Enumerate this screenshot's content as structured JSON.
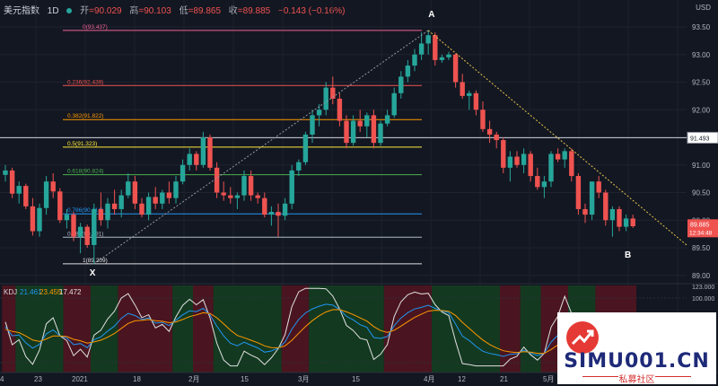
{
  "header": {
    "symbol": "美元指数",
    "interval": "1D",
    "open_label": "开",
    "open": "=90.029",
    "high_label": "高",
    "high": "=90.103",
    "low_label": "低",
    "low": "=89.865",
    "close_label": "收",
    "close": "=89.885",
    "change": "−0.143 (−0.16%)"
  },
  "currency": "USD",
  "price_axis": [
    "93.50",
    "93.00",
    "92.50",
    "92.00",
    "91.50",
    "91.00",
    "90.50",
    "90.00",
    "89.50",
    "89.00"
  ],
  "price_badges": {
    "level": "91.493",
    "last": "89.885",
    "countdown": "12:34:48"
  },
  "fib_levels": [
    {
      "label": "0(93.437)",
      "value": 93.437,
      "color": "#f06292"
    },
    {
      "label": "0.236(92.439)",
      "value": 92.439,
      "color": "#ef5350"
    },
    {
      "label": "0.382(91.822)",
      "value": 91.822,
      "color": "#ff9800"
    },
    {
      "label": "0.5(91.323)",
      "value": 91.323,
      "color": "#ffeb3b"
    },
    {
      "label": "0.618(90.824)",
      "value": 90.824,
      "color": "#4caf50"
    },
    {
      "label": "0.786(90.114)",
      "value": 90.114,
      "color": "#2196f3"
    },
    {
      "label": "0.886(89.691)",
      "value": 89.691,
      "color": "#b0bec5"
    },
    {
      "label": "1(89.209)",
      "value": 89.209,
      "color": "#e0e0e0"
    }
  ],
  "points": {
    "x_label": "X",
    "a_label": "A",
    "b_label": "B"
  },
  "kdj": {
    "label": "KDJ",
    "k": "21.461",
    "d": "23.455",
    "j": "17.472"
  },
  "kdj_axis": [
    "123.000",
    "100.000",
    "0.000"
  ],
  "time_axis": [
    "4",
    "23",
    "2021",
    "18",
    "2月",
    "15",
    "3月",
    "15",
    "4月",
    "12",
    "21",
    "5月",
    "10"
  ],
  "chart_data": {
    "type": "candlestick",
    "title": "美元指数 1D",
    "ylim": [
      88.8,
      93.8
    ],
    "candles": [
      [
        90.82,
        91.0,
        90.7,
        90.9
      ],
      [
        90.9,
        90.95,
        90.4,
        90.48
      ],
      [
        90.48,
        90.7,
        90.3,
        90.62
      ],
      [
        90.62,
        90.66,
        90.2,
        90.25
      ],
      [
        90.25,
        90.4,
        89.72,
        89.8
      ],
      [
        89.8,
        90.3,
        89.7,
        90.22
      ],
      [
        90.22,
        90.8,
        90.1,
        90.7
      ],
      [
        90.7,
        90.85,
        90.4,
        90.52
      ],
      [
        90.52,
        90.58,
        89.95,
        90.0
      ],
      [
        90.0,
        90.2,
        89.85,
        90.1
      ],
      [
        90.1,
        90.15,
        89.62,
        89.7
      ],
      [
        89.7,
        89.95,
        89.4,
        89.88
      ],
      [
        89.88,
        89.92,
        89.5,
        89.55
      ],
      [
        89.55,
        90.3,
        89.2,
        90.2
      ],
      [
        90.2,
        90.5,
        89.9,
        90.0
      ],
      [
        90.0,
        90.4,
        89.85,
        90.3
      ],
      [
        90.3,
        90.55,
        90.1,
        90.2
      ],
      [
        90.2,
        90.55,
        90.05,
        90.45
      ],
      [
        90.45,
        90.85,
        90.4,
        90.7
      ],
      [
        90.7,
        90.8,
        90.2,
        90.3
      ],
      [
        90.3,
        90.4,
        90.05,
        90.1
      ],
      [
        90.1,
        90.5,
        90.0,
        90.42
      ],
      [
        90.42,
        90.6,
        90.2,
        90.3
      ],
      [
        90.3,
        90.55,
        90.2,
        90.5
      ],
      [
        90.5,
        90.7,
        90.3,
        90.4
      ],
      [
        90.4,
        90.8,
        90.3,
        90.7
      ],
      [
        90.7,
        91.1,
        90.65,
        91.0
      ],
      [
        91.0,
        91.3,
        90.9,
        91.2
      ],
      [
        91.2,
        91.25,
        90.9,
        91.0
      ],
      [
        91.0,
        91.6,
        90.95,
        91.5
      ],
      [
        91.5,
        91.55,
        90.9,
        90.95
      ],
      [
        90.95,
        91.05,
        90.4,
        90.5
      ],
      [
        90.5,
        90.7,
        90.35,
        90.45
      ],
      [
        90.45,
        90.6,
        90.3,
        90.4
      ],
      [
        90.4,
        90.5,
        90.2,
        90.45
      ],
      [
        90.45,
        90.9,
        90.35,
        90.8
      ],
      [
        90.8,
        90.9,
        90.35,
        90.45
      ],
      [
        90.45,
        90.5,
        90.3,
        90.4
      ],
      [
        90.4,
        90.5,
        90.05,
        90.1
      ],
      [
        90.1,
        90.25,
        89.9,
        90.15
      ],
      [
        90.15,
        90.3,
        89.7,
        90.08
      ],
      [
        90.08,
        90.4,
        90.0,
        90.3
      ],
      [
        90.3,
        91.0,
        90.2,
        90.9
      ],
      [
        90.9,
        91.1,
        90.8,
        91.05
      ],
      [
        91.05,
        91.6,
        91.0,
        91.55
      ],
      [
        91.55,
        92.0,
        91.4,
        91.9
      ],
      [
        91.9,
        92.1,
        91.7,
        92.0
      ],
      [
        92.0,
        92.5,
        91.9,
        92.4
      ],
      [
        92.4,
        92.6,
        92.1,
        92.2
      ],
      [
        92.2,
        92.3,
        91.7,
        91.8
      ],
      [
        91.8,
        91.9,
        91.3,
        91.4
      ],
      [
        91.4,
        91.9,
        91.35,
        91.8
      ],
      [
        91.8,
        92.0,
        91.6,
        91.7
      ],
      [
        91.7,
        91.95,
        91.5,
        91.9
      ],
      [
        91.9,
        92.0,
        91.3,
        91.4
      ],
      [
        91.4,
        91.8,
        91.35,
        91.75
      ],
      [
        91.75,
        92.0,
        91.7,
        91.9
      ],
      [
        91.9,
        92.4,
        91.85,
        92.3
      ],
      [
        92.3,
        92.7,
        92.2,
        92.6
      ],
      [
        92.6,
        92.9,
        92.5,
        92.8
      ],
      [
        92.8,
        93.1,
        92.7,
        93.0
      ],
      [
        93.0,
        93.4,
        92.9,
        93.2
      ],
      [
        93.2,
        93.44,
        93.0,
        93.35
      ],
      [
        93.35,
        93.4,
        92.8,
        92.9
      ],
      [
        92.9,
        93.0,
        92.85,
        92.95
      ],
      [
        92.95,
        93.05,
        92.9,
        93.0
      ],
      [
        93.0,
        93.02,
        92.4,
        92.5
      ],
      [
        92.5,
        92.65,
        92.2,
        92.25
      ],
      [
        92.25,
        92.35,
        92.0,
        92.3
      ],
      [
        92.3,
        92.35,
        91.9,
        92.0
      ],
      [
        92.0,
        92.15,
        91.6,
        91.65
      ],
      [
        91.65,
        91.8,
        91.4,
        91.55
      ],
      [
        91.55,
        91.6,
        91.3,
        91.45
      ],
      [
        91.45,
        91.5,
        90.85,
        90.95
      ],
      [
        90.95,
        91.25,
        90.7,
        91.15
      ],
      [
        91.15,
        91.25,
        90.95,
        91.0
      ],
      [
        91.0,
        91.3,
        90.85,
        91.2
      ],
      [
        91.2,
        91.25,
        90.7,
        90.8
      ],
      [
        90.8,
        90.95,
        90.55,
        90.6
      ],
      [
        90.6,
        90.8,
        90.4,
        90.7
      ],
      [
        90.7,
        91.25,
        90.6,
        91.2
      ],
      [
        91.2,
        91.3,
        91.05,
        91.1
      ],
      [
        91.1,
        91.3,
        90.95,
        91.25
      ],
      [
        91.25,
        91.3,
        90.7,
        90.8
      ],
      [
        90.8,
        90.85,
        90.1,
        90.2
      ],
      [
        90.2,
        90.3,
        89.95,
        90.1
      ],
      [
        90.1,
        90.7,
        90.0,
        90.7
      ],
      [
        90.7,
        90.8,
        90.4,
        90.5
      ],
      [
        90.5,
        90.55,
        89.9,
        90.0
      ],
      [
        90.0,
        90.25,
        89.7,
        90.2
      ],
      [
        90.2,
        90.25,
        89.8,
        89.88
      ],
      [
        89.88,
        90.1,
        89.8,
        90.03
      ],
      [
        90.03,
        90.1,
        89.86,
        89.89
      ]
    ]
  }
}
